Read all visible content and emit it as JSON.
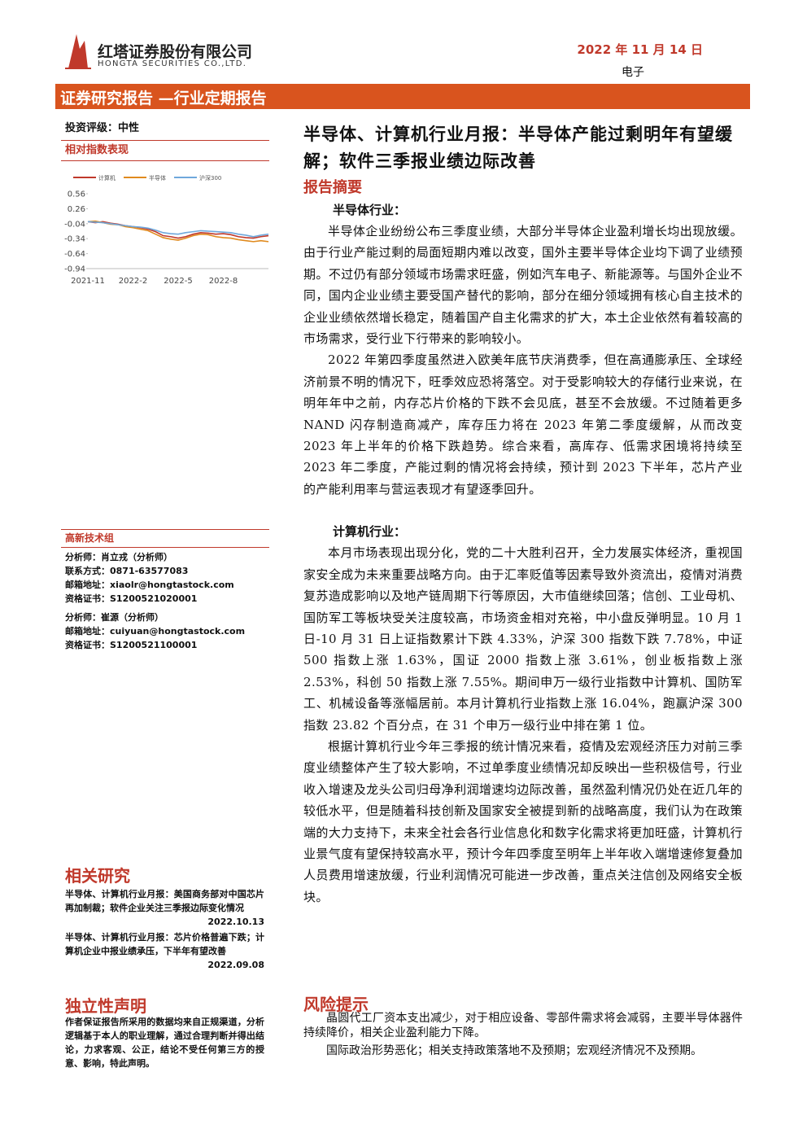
{
  "header": {
    "company": "红塔证券股份有限公司",
    "company_en": "HONGTA SECURITIES CO.,LTD.",
    "date": "2022 年 11 月 14 日",
    "sector": "电子"
  },
  "banner": "证券研究报告 —行业定期报告",
  "sidebar": {
    "rating": "投资评级：中性",
    "chart_heading": "相对指数表现",
    "chart_data": {
      "type": "line",
      "categories": [
        "2021-11",
        null,
        null,
        null,
        null,
        null,
        "2022-2",
        null,
        null,
        null,
        null,
        null,
        "2022-5",
        null,
        null,
        null,
        null,
        null,
        "2022-8",
        null,
        null,
        null,
        null,
        null,
        null
      ],
      "series": [
        {
          "name": "计算机",
          "color": "#c0392b",
          "values": [
            0,
            -0.02,
            0.0,
            -0.03,
            -0.05,
            -0.08,
            -0.1,
            -0.12,
            -0.15,
            -0.2,
            -0.28,
            -0.3,
            -0.33,
            -0.3,
            -0.25,
            -0.22,
            -0.23,
            -0.25,
            -0.24,
            -0.26,
            -0.3,
            -0.32,
            -0.33,
            -0.3,
            -0.28
          ]
        },
        {
          "name": "半导体",
          "color": "#e08a1e",
          "values": [
            0,
            0.01,
            -0.02,
            -0.05,
            -0.06,
            -0.1,
            -0.12,
            -0.15,
            -0.18,
            -0.25,
            -0.32,
            -0.35,
            -0.37,
            -0.33,
            -0.28,
            -0.25,
            -0.26,
            -0.3,
            -0.32,
            -0.33,
            -0.36,
            -0.38,
            -0.4,
            -0.38,
            -0.4
          ]
        },
        {
          "name": "沪深300",
          "color": "#6fa8dc",
          "values": [
            0,
            -0.01,
            -0.02,
            -0.04,
            -0.06,
            -0.08,
            -0.1,
            -0.11,
            -0.13,
            -0.17,
            -0.22,
            -0.24,
            -0.25,
            -0.22,
            -0.2,
            -0.18,
            -0.19,
            -0.2,
            -0.21,
            -0.22,
            -0.25,
            -0.27,
            -0.3,
            -0.27,
            -0.25
          ]
        }
      ],
      "ylim": [
        -0.94,
        0.56
      ],
      "yticks": [
        0.56,
        0.26,
        -0.04,
        -0.34,
        -0.64,
        -0.94
      ],
      "legend": "top"
    },
    "group": "高新技术组",
    "analysts": [
      "分析师：肖立戎（分析师）",
      "联系方式：0871-63577083",
      "邮箱地址：xiaolr@hongtastock.com",
      "资格证书：S1200521020001",
      "分析师：崔源（分析师）",
      "邮箱地址：cuiyuan@hongtastock.com",
      "资格证书：S1200521100001"
    ],
    "related_heading": "相关研究",
    "related": [
      {
        "title": "半导体、计算机行业月报：美国商务部对中国芯片再加制裁；软件企业关注三季报边际变化情况",
        "date": "2022.10.13"
      },
      {
        "title": "半导体、计算机行业月报：芯片价格普遍下跌；计算机企业中报业绩承压，下半年有望改善",
        "date": "2022.09.08"
      }
    ],
    "statement_heading": "独立性声明",
    "statement": "作者保证报告所采用的数据均来自正规渠道，分析逻辑基于本人的职业理解，通过合理判断并得出结论，力求客观、公正，结论不受任何第三方的授意、影响，特此声明。"
  },
  "main": {
    "title": "半导体、计算机行业月报：半导体产能过剩明年有望缓解；软件三季报业绩边际改善",
    "summary_heading": "报告摘要",
    "sections": [
      {
        "heading": "半导体行业：",
        "paragraphs": [
          "半导体企业纷纷公布三季度业绩，大部分半导体企业盈利增长均出现放缓。由于行业产能过剩的局面短期内难以改变，国外主要半导体企业均下调了业绩预期。不过仍有部分领域市场需求旺盛，例如汽车电子、新能源等。与国外企业不同，国内企业业绩主要受国产替代的影响，部分在细分领域拥有核心自主技术的企业业绩依然增长稳定，随着国产自主化需求的扩大，本土企业依然有着较高的市场需求，受行业下行带来的影响较小。",
          "2022 年第四季度虽然进入欧美年底节庆消费季，但在高通膨承压、全球经济前景不明的情况下，旺季效应恐将落空。对于受影响较大的存储行业来说，在明年年中之前，内存芯片价格的下跌不会见底，甚至不会放缓。不过随着更多 NAND 闪存制造商减产，库存压力将在 2023 年第二季度缓解，从而改变 2023 年上半年的价格下跌趋势。综合来看，高库存、低需求困境将持续至 2023 年二季度，产能过剩的情况将会持续，预计到 2023 下半年，芯片产业的产能利用率与营运表现才有望逐季回升。"
        ]
      },
      {
        "heading": "计算机行业：",
        "paragraphs": [
          "本月市场表现出现分化，党的二十大胜利召开，全力发展实体经济，重视国家安全成为未来重要战略方向。由于汇率贬值等因素导致外资流出，疫情对消费复苏造成影响以及地产链周期下行等原因，大市值继续回落；信创、工业母机、国防军工等板块受关注度较高，市场资金相对充裕，中小盘反弹明显。10 月 1 日-10 月 31 日上证指数累计下跌 4.33%，沪深 300 指数下跌 7.78%，中证 500 指数上涨 1.63%，国证 2000 指数上涨 3.61%，创业板指数上涨 2.53%，科创 50 指数上涨 7.55%。期间申万一级行业指数中计算机、国防军工、机械设备等涨幅居前。本月计算机行业指数上涨 16.04%，跑赢沪深 300 指数 23.82 个百分点，在 31 个申万一级行业中排在第 1 位。",
          "根据计算机行业今年三季报的统计情况来看，疫情及宏观经济压力对前三季度业绩整体产生了较大影响，不过单季度业绩情况却反映出一些积极信号，行业收入增速及龙头公司归母净利润增速均边际改善，虽然盈利情况仍处在近几年的较低水平，但是随着科技创新及国家安全被提到新的战略高度，我们认为在政策端的大力支持下，未来全社会各行业信息化和数字化需求将更加旺盛，计算机行业景气度有望保持较高水平，预计今年四季度至明年上半年收入端增速修复叠加人员费用增速放缓，行业利润情况可能进一步改善，重点关注信创及网络安全板块。"
        ]
      }
    ],
    "risk_heading": "风险提示",
    "risks": [
      "晶圆代工厂资本支出减少，对于相应设备、零部件需求将会减弱，主要半导体器件持续降价，相关企业盈利能力下降。",
      "国际政治形势恶化；相关支持政策落地不及预期；宏观经济情况不及预期。"
    ]
  }
}
